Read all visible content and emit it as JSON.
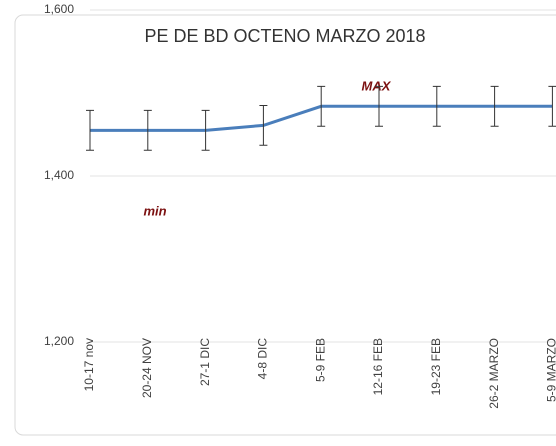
{
  "chart_data": {
    "type": "line",
    "title": "PE DE BD OCTENO MARZO  2018",
    "categories": [
      "10-17 nov",
      "20-24 NOV",
      "27-1 DIC",
      "4-8 DIC",
      "5-9 FEB",
      "12-16 FEB",
      "19-23 FEB",
      "26-2  MARZO",
      "5-9 MARZO"
    ],
    "series": [
      {
        "name": "PE",
        "color": "#4a7ebb",
        "values": [
          1455,
          1455,
          1455,
          1461,
          1484,
          1484,
          1484,
          1484,
          1484
        ],
        "errors": [
          24,
          24,
          24,
          24,
          24,
          24,
          24,
          24,
          24
        ]
      }
    ],
    "ylim": [
      1200,
      1600
    ],
    "yticks": [
      {
        "value": 1200,
        "label": "1,200"
      },
      {
        "value": 1400,
        "label": "1,400"
      },
      {
        "value": 1600,
        "label": "1,600"
      }
    ],
    "grid": true,
    "annotations": [
      {
        "text": "min"
      },
      {
        "text": "MAX"
      }
    ]
  }
}
